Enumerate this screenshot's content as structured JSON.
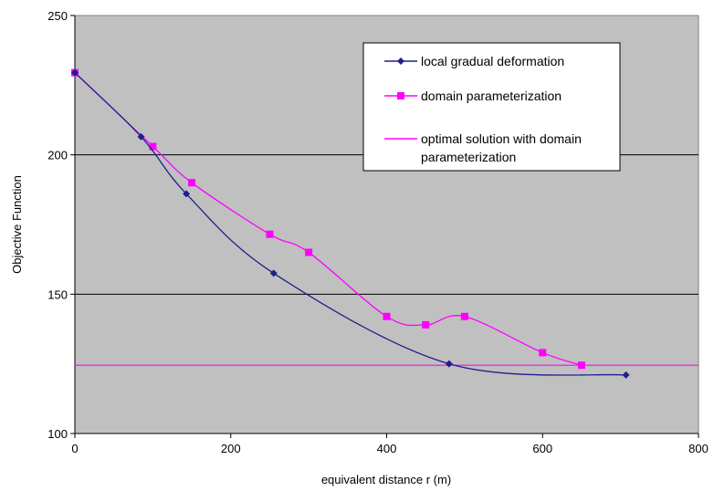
{
  "chart_data": {
    "type": "line",
    "xlabel": "equivalent distance r (m)",
    "ylabel": "Objective Function",
    "xlim": [
      0,
      800
    ],
    "ylim": [
      100,
      250
    ],
    "x_ticks": [
      0,
      200,
      400,
      600,
      800
    ],
    "y_ticks": [
      100,
      150,
      200,
      250
    ],
    "grid": "horizontal major gridlines",
    "legend_position": "top-right, inside plot",
    "plot_background": "#c0c0c0",
    "series": [
      {
        "name": "local gradual deformation",
        "color": "#1f1f8f",
        "marker": "diamond",
        "x": [
          0,
          85,
          143,
          255,
          480,
          707
        ],
        "y": [
          229.5,
          206.5,
          186,
          157.5,
          125,
          121
        ]
      },
      {
        "name": "domain parameterization",
        "color": "#ff00ff",
        "marker": "square",
        "x": [
          0,
          100,
          150,
          250,
          300,
          400,
          450,
          500,
          600,
          650
        ],
        "y": [
          229.5,
          203,
          190,
          171.5,
          165,
          142,
          139,
          142,
          129,
          124.5
        ]
      },
      {
        "name": "optimal solution with domain parameterization",
        "legend_lines": [
          "optimal solution with domain",
          "parameterization"
        ],
        "color": "#ff00ff",
        "marker": "none",
        "constant_y": 124.5
      }
    ]
  }
}
